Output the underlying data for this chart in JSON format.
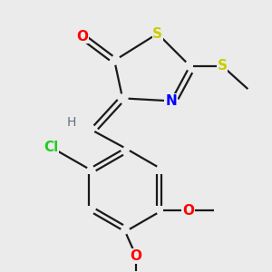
{
  "background_color": "#ebebeb",
  "bond_color": "#1a1a1a",
  "lw": 1.6,
  "atom_colors": {
    "O": "#ff0000",
    "S": "#cccc00",
    "N": "#0000ff",
    "H": "#607080",
    "Cl": "#22cc22",
    "C": "#1a1a1a"
  },
  "font_size": 11
}
